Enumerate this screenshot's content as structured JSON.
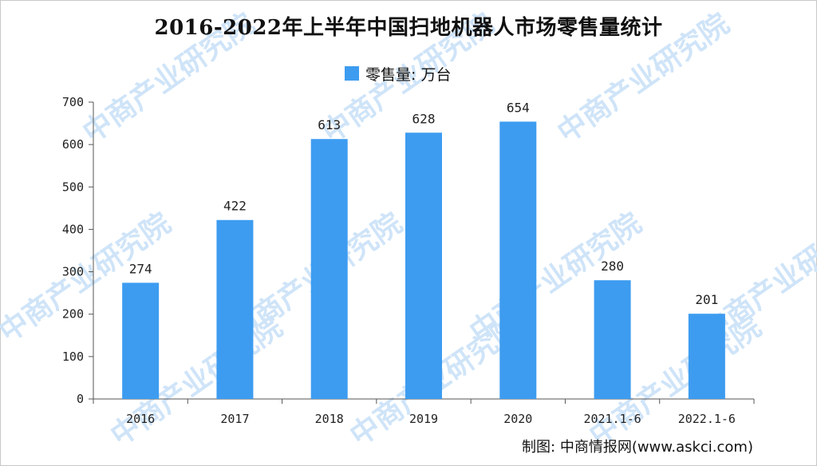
{
  "title": "2016-2022年上半年中国扫地机器人市场零售量统计",
  "legend_label": "零售量: 万台",
  "credit": "制图: 中商情报网(www.askci.com)",
  "watermark": "中商产业研究院",
  "colors": {
    "bar": "#3d9cf0",
    "axis": "#555555"
  },
  "chart_data": {
    "type": "bar",
    "categories": [
      "2016",
      "2017",
      "2018",
      "2019",
      "2020",
      "2021.1-6",
      "2022.1-6"
    ],
    "series": [
      {
        "name": "零售量: 万台",
        "values": [
          274,
          422,
          613,
          628,
          654,
          280,
          201
        ]
      }
    ],
    "ylim": [
      0,
      700
    ],
    "yticks": [
      0,
      100,
      200,
      300,
      400,
      500,
      600,
      700
    ],
    "grid": false,
    "legend": "top-center"
  }
}
